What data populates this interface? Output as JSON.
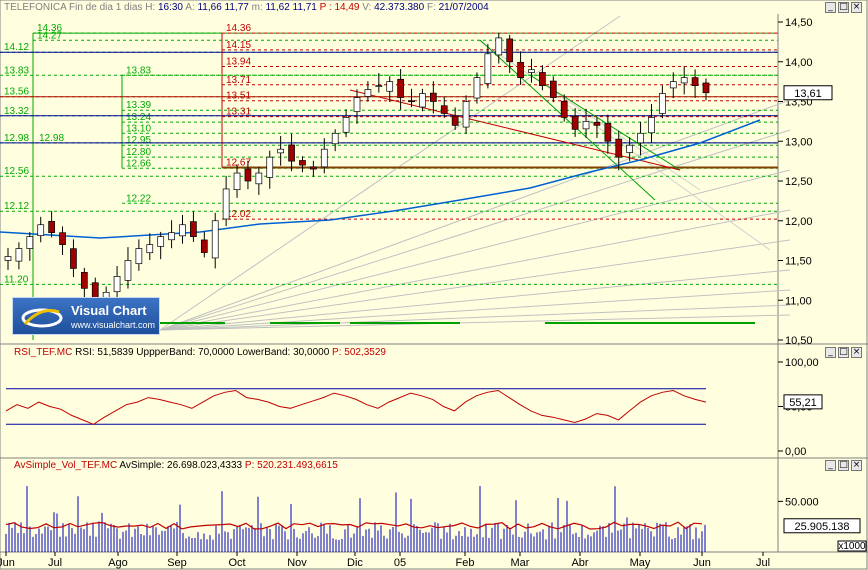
{
  "header": {
    "symbol": "TELEFONICA",
    "period": "Fin de dia 1 dias",
    "h_label": "H:",
    "h_value": "16:30",
    "a_label": "A:",
    "a_value": "11,66",
    "max_value": "11,77",
    "m_label": "m:",
    "m_value": "11,62",
    "c_value": "11,71",
    "p_label": "P :",
    "p_value": "14,49",
    "v_label": "V:",
    "v_value": "42.373.380",
    "f_label": "F:",
    "f_value": "21/07/2004"
  },
  "logo": {
    "title": "Visual Chart",
    "url": "www.visualchart.com"
  },
  "rsi_header": {
    "name": "RSI_TEF.MC",
    "rsi_label": "RSI:",
    "rsi_value": "51,5839",
    "ub_label": "UppperBand:",
    "ub_value": "70,0000",
    "lb_label": "LowerBand:",
    "lb_value": "30,0000",
    "p_label": "P:",
    "p_value": "502,3529"
  },
  "vol_header": {
    "name": "AvSimple_Vol_TEF.MC",
    "avs_label": "AvSimple:",
    "avs_value": "26.698.023,4333",
    "p_label": "P:",
    "p_value": "520.231.493,6615"
  },
  "colors": {
    "background": "#ffffe0",
    "green_levels": "#00aa00",
    "red_levels": "#c00000",
    "blue_lines": "#0000a0",
    "candle_up": "#ffffff",
    "candle_down": "#a00000",
    "rsi_line": "#c00000",
    "volume": "#0000c0",
    "volume_avg": "#c00000",
    "ma_line": "#0060d0"
  },
  "chart_data": [
    {
      "type": "candlestick",
      "title": "TELEFONICA",
      "x_ticks": [
        "Jun",
        "Jul",
        "Ago",
        "Sep",
        "Oct",
        "Nov",
        "Dic",
        "05",
        "Feb",
        "Mar",
        "Abr",
        "May",
        "Jun",
        "Jul"
      ],
      "ylim": [
        10.5,
        14.5
      ],
      "y_ticks": [
        "14,50",
        "14,00",
        "13,50",
        "13,00",
        "12,50",
        "12,00",
        "11,50",
        "11,00",
        "10,50"
      ],
      "last_value": "13,61",
      "close_approx": [
        11.55,
        11.65,
        11.8,
        11.95,
        11.85,
        11.7,
        11.4,
        11.15,
        10.95,
        11.1,
        11.3,
        11.5,
        11.65,
        11.7,
        11.8,
        11.85,
        11.95,
        11.8,
        11.6,
        12.0,
        12.4,
        12.6,
        12.5,
        12.6,
        12.8,
        12.9,
        12.75,
        12.7,
        12.65,
        12.9,
        13.1,
        13.3,
        13.55,
        13.65,
        13.7,
        13.75,
        13.55,
        13.5,
        13.6,
        13.5,
        13.35,
        13.2,
        13.5,
        13.8,
        14.1,
        14.3,
        14.0,
        13.8,
        13.9,
        13.7,
        13.55,
        13.3,
        13.15,
        13.25,
        13.2,
        13.0,
        12.8,
        12.95,
        13.1,
        13.3,
        13.6,
        13.75,
        13.8,
        13.7,
        13.61
      ],
      "fibonacci_green_levels": [
        "14.36",
        "14.27",
        "14.12",
        "13.83",
        "13.83",
        "13.56",
        "13.39",
        "13.32",
        "13.24",
        "13.10",
        "12.98",
        "12.98",
        "12.95",
        "12.80",
        "12.66",
        "12.56",
        "12.22",
        "12.12",
        "11.20"
      ],
      "fibonacci_red_levels": [
        "14.36",
        "14.15",
        "13.94",
        "13.71",
        "13.51",
        "13.31",
        "12.67",
        "12.02"
      ]
    },
    {
      "type": "line",
      "title": "RSI_TEF.MC",
      "ylim": [
        0,
        100
      ],
      "y_ticks": [
        "100,00",
        "50,00",
        "0,00"
      ],
      "bands": [
        70,
        30
      ],
      "last_value": "55,21",
      "values_approx": [
        45,
        52,
        48,
        55,
        50,
        47,
        40,
        35,
        30,
        38,
        45,
        52,
        55,
        60,
        58,
        55,
        52,
        48,
        55,
        62,
        66,
        68,
        60,
        58,
        55,
        50,
        48,
        52,
        56,
        60,
        65,
        62,
        58,
        52,
        48,
        55,
        60,
        65,
        62,
        58,
        50,
        45,
        55,
        62,
        66,
        68,
        60,
        52,
        45,
        40,
        38,
        35,
        32,
        36,
        42,
        40,
        35,
        45,
        55,
        62,
        66,
        68,
        62,
        58,
        55
      ]
    },
    {
      "type": "bar",
      "title": "AvSimple_Vol_TEF.MC",
      "ylim": [
        0,
        80000
      ],
      "y_ticks": [
        "50.000"
      ],
      "unit_note": "x1000",
      "last_value": "25.905.138",
      "average_approx": 26000
    }
  ],
  "x_axis_labels": [
    "Jun",
    "Jul",
    "Ago",
    "Sep",
    "Oct",
    "Nov",
    "Dic",
    "05",
    "Feb",
    "Mar",
    "Abr",
    "May",
    "Jun",
    "Jul"
  ],
  "controls": {
    "minimize": "_",
    "maximize": "□",
    "close": "×"
  }
}
